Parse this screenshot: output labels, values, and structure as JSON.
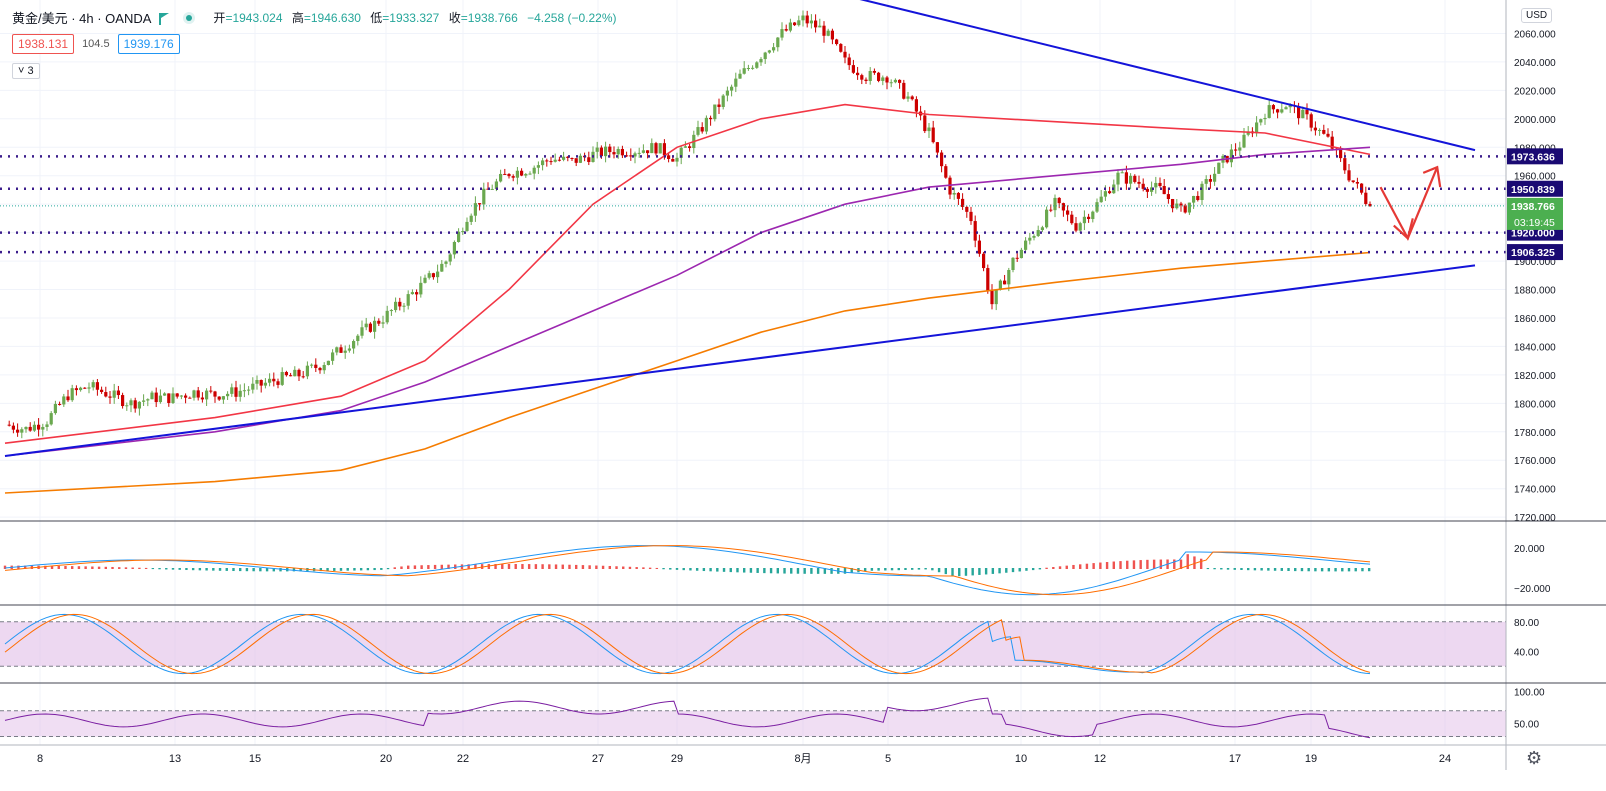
{
  "header": {
    "symbol": "黄金/美元 · 4h · OANDA",
    "open_label": "开",
    "open": "=1943.024",
    "high_label": "高",
    "high": "=1946.630",
    "low_label": "低",
    "low": "=1933.327",
    "close_label": "收",
    "close": "=1938.766",
    "change": "−4.258 (−0.22%)"
  },
  "quote": {
    "sell": "1938.131",
    "spread": "104.5",
    "buy": "1939.176"
  },
  "indicators_collapsed": "3",
  "currency_button": "USD",
  "colors": {
    "up": "#26a69a",
    "down": "#ef5350",
    "candle_up": "#6aa84f",
    "candle_down": "#cc0000",
    "ma_red": "#f23645",
    "ma_purple": "#9c27b0",
    "ma_orange": "#f57c00",
    "trendline": "#1414d9",
    "level": "#3c1e8c",
    "arrow": "#e53935",
    "macd_fast": "#2196f3",
    "macd_slow": "#ff6d00",
    "rsi_line": "#7b1fa2",
    "band_fill": "#e1bee7"
  },
  "chart_data": [
    {
      "type": "candlestick",
      "title": "",
      "x_ticks": [
        "8",
        "13",
        "15",
        "20",
        "22",
        "27",
        "29",
        "8月",
        "5",
        "10",
        "12",
        "17",
        "19",
        "24"
      ],
      "y_ticks": [
        "2060.000",
        "2040.000",
        "2020.000",
        "2000.000",
        "1980.000",
        "1960.000",
        "1940.000",
        "1920.000",
        "1900.000",
        "1880.000",
        "1860.000",
        "1840.000",
        "1820.000",
        "1800.000",
        "1780.000",
        "1760.000",
        "1740.000",
        "1720.000"
      ],
      "ylim": [
        1718,
        2080
      ],
      "close_path": [
        [
          0,
          1785
        ],
        [
          10,
          1782
        ],
        [
          20,
          1788
        ],
        [
          30,
          1806
        ],
        [
          40,
          1812
        ],
        [
          50,
          1806
        ],
        [
          60,
          1800
        ],
        [
          70,
          1804
        ],
        [
          80,
          1804
        ],
        [
          90,
          1808
        ],
        [
          100,
          1806
        ],
        [
          110,
          1808
        ],
        [
          120,
          1812
        ],
        [
          130,
          1817
        ],
        [
          140,
          1820
        ],
        [
          150,
          1827
        ],
        [
          160,
          1838
        ],
        [
          170,
          1850
        ],
        [
          180,
          1860
        ],
        [
          190,
          1872
        ],
        [
          200,
          1885
        ],
        [
          210,
          1900
        ],
        [
          220,
          1932
        ],
        [
          230,
          1950
        ],
        [
          240,
          1962
        ],
        [
          250,
          1965
        ],
        [
          260,
          1972
        ],
        [
          270,
          1970
        ],
        [
          280,
          1975
        ],
        [
          290,
          1978
        ],
        [
          300,
          1978
        ],
        [
          310,
          1980
        ],
        [
          320,
          1972
        ],
        [
          330,
          1990
        ],
        [
          340,
          2010
        ],
        [
          350,
          2030
        ],
        [
          360,
          2045
        ],
        [
          370,
          2060
        ],
        [
          380,
          2070
        ],
        [
          390,
          2062
        ],
        [
          400,
          2040
        ],
        [
          410,
          2030
        ],
        [
          420,
          2030
        ],
        [
          430,
          2015
        ],
        [
          440,
          1990
        ],
        [
          450,
          1950
        ],
        [
          460,
          1930
        ],
        [
          470,
          1870
        ],
        [
          480,
          1900
        ],
        [
          490,
          1920
        ],
        [
          500,
          1940
        ],
        [
          510,
          1925
        ],
        [
          520,
          1940
        ],
        [
          530,
          1960
        ],
        [
          540,
          1955
        ],
        [
          550,
          1950
        ],
        [
          560,
          1935
        ],
        [
          570,
          1950
        ],
        [
          580,
          1970
        ],
        [
          590,
          1985
        ],
        [
          600,
          2005
        ],
        [
          610,
          2010
        ],
        [
          620,
          2000
        ],
        [
          630,
          1985
        ],
        [
          640,
          1960
        ],
        [
          650,
          1938.766
        ]
      ],
      "moving_averages": [
        {
          "name": "MA red",
          "points": [
            [
              0,
              1772
            ],
            [
              100,
              1790
            ],
            [
              160,
              1805
            ],
            [
              200,
              1830
            ],
            [
              240,
              1880
            ],
            [
              280,
              1940
            ],
            [
              320,
              1980
            ],
            [
              360,
              2000
            ],
            [
              400,
              2010
            ],
            [
              440,
              2003
            ],
            [
              500,
              1998
            ],
            [
              560,
              1993
            ],
            [
              600,
              1990
            ],
            [
              650,
              1975
            ]
          ]
        },
        {
          "name": "MA purple",
          "points": [
            [
              0,
              1763
            ],
            [
              100,
              1780
            ],
            [
              160,
              1795
            ],
            [
              200,
              1815
            ],
            [
              240,
              1840
            ],
            [
              280,
              1865
            ],
            [
              320,
              1890
            ],
            [
              360,
              1920
            ],
            [
              400,
              1940
            ],
            [
              440,
              1952
            ],
            [
              500,
              1960
            ],
            [
              560,
              1968
            ],
            [
              600,
              1975
            ],
            [
              650,
              1980
            ]
          ]
        },
        {
          "name": "MA orange",
          "points": [
            [
              0,
              1737
            ],
            [
              100,
              1745
            ],
            [
              160,
              1753
            ],
            [
              200,
              1768
            ],
            [
              240,
              1790
            ],
            [
              280,
              1810
            ],
            [
              320,
              1830
            ],
            [
              360,
              1850
            ],
            [
              400,
              1865
            ],
            [
              440,
              1874
            ],
            [
              500,
              1885
            ],
            [
              560,
              1895
            ],
            [
              600,
              1900
            ],
            [
              650,
              1906
            ]
          ]
        }
      ],
      "trendlines": [
        {
          "name": "resistance",
          "from": [
            380,
            2094
          ],
          "to": [
            700,
            1978
          ]
        },
        {
          "name": "support",
          "from": [
            0,
            1763
          ],
          "to": [
            700,
            1897
          ]
        }
      ],
      "price_levels": [
        "1973.636",
        "1950.839",
        "1920.000",
        "1906.325"
      ],
      "last_price_label": "1938.766",
      "countdown": "03:19:45",
      "projection": "down to ~1920 then up to ~1965"
    },
    {
      "type": "line",
      "name": "MACD",
      "y_ticks": [
        "20.000",
        "−20.000"
      ]
    },
    {
      "type": "line",
      "name": "Stochastic",
      "y_ticks": [
        "80.00",
        "40.00"
      ]
    },
    {
      "type": "line",
      "name": "RSI",
      "y_ticks": [
        "100.00",
        "50.00"
      ]
    }
  ]
}
